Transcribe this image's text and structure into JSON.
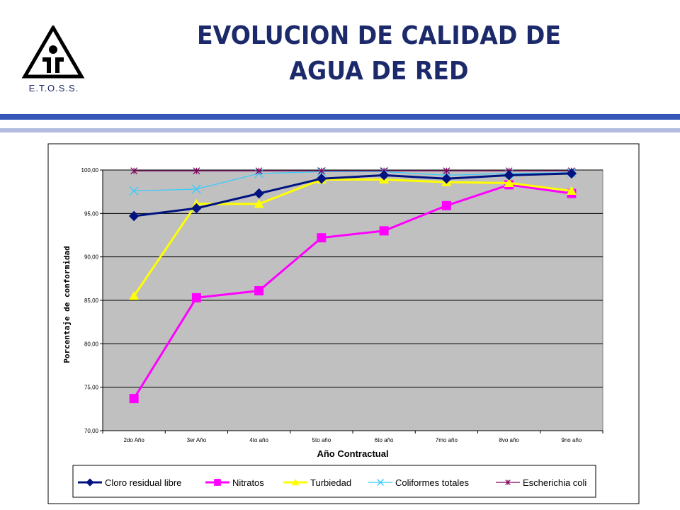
{
  "header": {
    "logo_text": "E.T.O.S.S.",
    "title_line1": "EVOLUCION DE CALIDAD DE",
    "title_line2": "AGUA DE RED",
    "title_color": "#1c2a6b",
    "rule_color": "#3558b8",
    "rule_light_color": "#b3bce0"
  },
  "chart_data": {
    "type": "line",
    "title": "",
    "xlabel": "Año Contractual",
    "ylabel": "Porcentaje de conformidad",
    "categories": [
      "2do Año",
      "3er Año",
      "4to año",
      "5to año",
      "6to año",
      "7mo año",
      "8vo año",
      "9no año"
    ],
    "ylim": [
      70,
      100
    ],
    "yticks": [
      "70,00",
      "75,00",
      "80,00",
      "85,00",
      "90,00",
      "95,00",
      "100,00"
    ],
    "grid": true,
    "plot_background": "#c0c0c0",
    "legend_position": "bottom",
    "series": [
      {
        "name": "Cloro residual libre",
        "color": "#001380",
        "marker": "diamond",
        "values": [
          94.7,
          95.6,
          97.3,
          99.0,
          99.4,
          99.0,
          99.4,
          99.6
        ]
      },
      {
        "name": "Nitratos",
        "color": "#ff00ff",
        "marker": "square",
        "values": [
          73.7,
          85.3,
          86.1,
          92.2,
          93.0,
          95.9,
          98.3,
          97.3
        ]
      },
      {
        "name": "Turbiedad",
        "color": "#ffff00",
        "marker": "triangle",
        "values": [
          85.5,
          96.1,
          96.1,
          98.9,
          98.9,
          98.6,
          98.5,
          97.6
        ]
      },
      {
        "name": "Coliformes totales",
        "color": "#33ccff",
        "marker": "x",
        "values": [
          97.6,
          97.8,
          99.6,
          99.8,
          99.8,
          99.4,
          99.6,
          99.7
        ]
      },
      {
        "name": "Escherichia coli",
        "color": "#800060",
        "marker": "star",
        "values": [
          99.9,
          99.9,
          99.9,
          99.9,
          99.9,
          99.9,
          99.9,
          99.9
        ]
      }
    ]
  }
}
